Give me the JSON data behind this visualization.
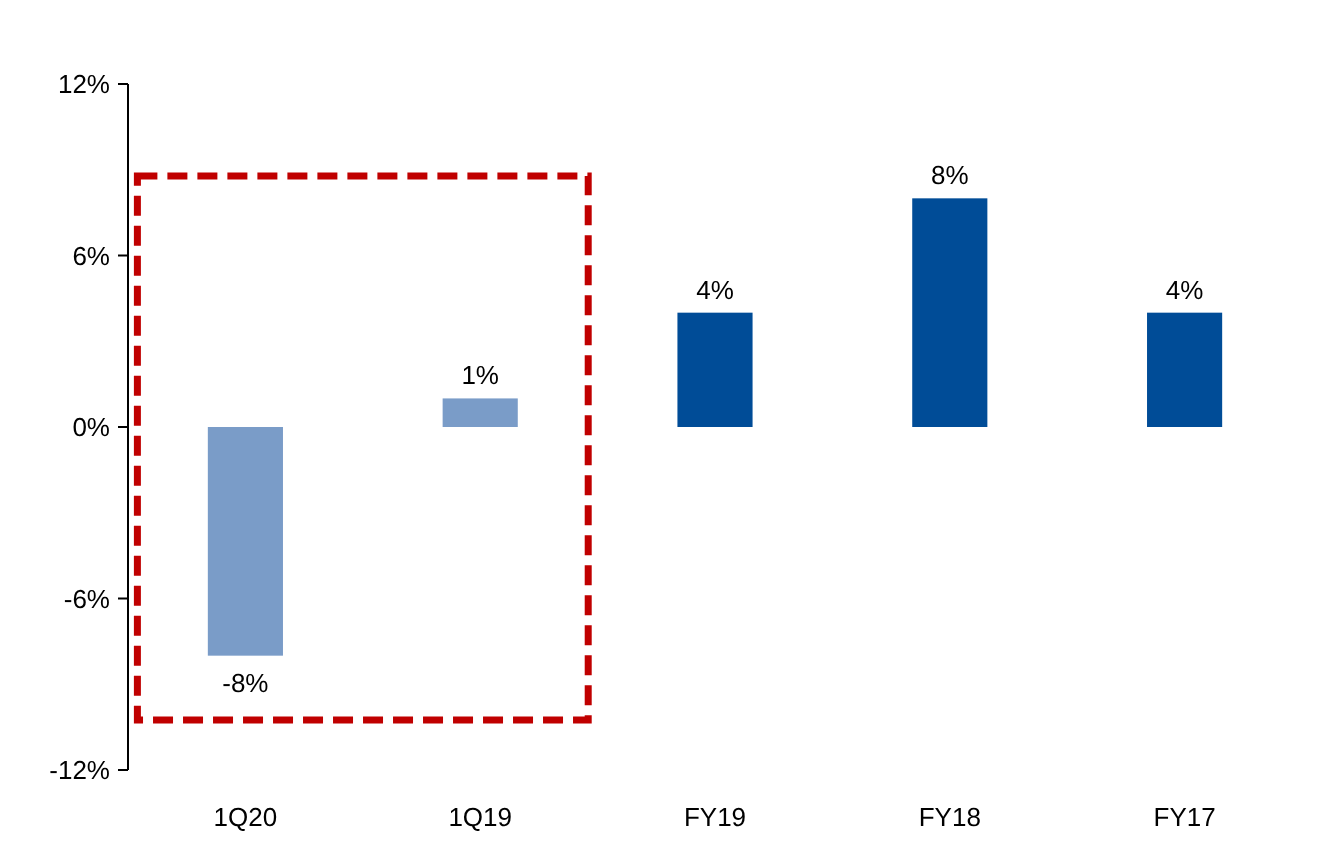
{
  "chart_data": {
    "type": "bar",
    "categories": [
      "1Q20",
      "1Q19",
      "FY19",
      "FY18",
      "FY17"
    ],
    "values": [
      -8,
      1,
      4,
      8,
      4
    ],
    "colors": [
      "#7a9cc8",
      "#7a9cc8",
      "#004c97",
      "#004c97",
      "#004c97"
    ],
    "value_labels": [
      "-8%",
      "1%",
      "4%",
      "8%",
      "4%"
    ],
    "ylim": [
      -12,
      12
    ],
    "yticks": [
      {
        "value": -12,
        "label": "-12%"
      },
      {
        "value": -6,
        "label": "-6%"
      },
      {
        "value": 0,
        "label": "0%"
      },
      {
        "value": 6,
        "label": "6%"
      },
      {
        "value": 12,
        "label": "12%"
      }
    ],
    "grid": false
  }
}
